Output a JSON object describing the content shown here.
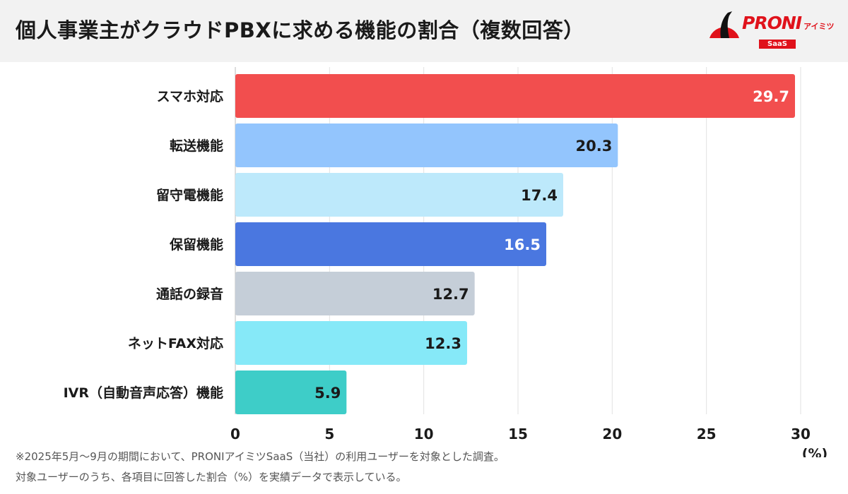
{
  "header": {
    "title": "個人事業主がクラウドPBXに求める機能の割合（複数回答）"
  },
  "logo": {
    "main": "PRONI",
    "sub": "アイミツ",
    "saas": "SaaS"
  },
  "chart_data": {
    "type": "bar",
    "orientation": "horizontal",
    "title": "個人事業主がクラウドPBXに求める機能の割合（複数回答）",
    "categories": [
      "スマホ対応",
      "転送機能",
      "留守電機能",
      "保留機能",
      "通話の録音",
      "ネットFAX対応",
      "IVR（自動音声応答）機能"
    ],
    "values": [
      29.7,
      20.3,
      17.4,
      16.5,
      12.7,
      12.3,
      5.9
    ],
    "value_labels": [
      "29.7",
      "20.3",
      "17.4",
      "16.5",
      "12.7",
      "12.3",
      "5.9"
    ],
    "colors": [
      "#f24e4e",
      "#93c5fd",
      "#bde9fb",
      "#4a77e0",
      "#c5ced8",
      "#86e9f8",
      "#3ecdc8"
    ],
    "label_colors": [
      "#ffffff",
      "#1a1a1a",
      "#1a1a1a",
      "#ffffff",
      "#1a1a1a",
      "#1a1a1a",
      "#1a1a1a"
    ],
    "xlim": [
      0,
      30
    ],
    "xticks": [
      "0",
      "5",
      "10",
      "15",
      "20",
      "25",
      "30"
    ],
    "xlabel": "(%)",
    "grid": true
  },
  "footnotes": [
    "※2025年5月〜9月の期間において、PRONIアイミツSaaS（当社）の利用ユーザーを対象とした調査。",
    "対象ユーザーのうち、各項目に回答した割合（%）を実績データで表示している。"
  ]
}
